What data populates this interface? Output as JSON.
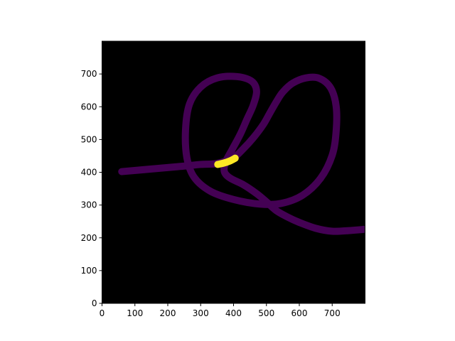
{
  "chart_data": {
    "type": "line",
    "title": "",
    "xlabel": "",
    "ylabel": "",
    "xlim": [
      0,
      800
    ],
    "ylim": [
      0,
      800
    ],
    "x_ticks": [
      0,
      100,
      200,
      300,
      400,
      500,
      600,
      700
    ],
    "y_ticks": [
      0,
      100,
      200,
      300,
      400,
      500,
      600,
      700
    ],
    "grid": false,
    "legend": "none",
    "background_color": "#000000",
    "colors": {
      "path": "#440154",
      "highlight": "#fde725",
      "frame": "#000000"
    },
    "series": [
      {
        "style": "thick-path",
        "points": [
          [
            60,
            402
          ],
          [
            150,
            410
          ],
          [
            230,
            417
          ],
          [
            300,
            424
          ],
          [
            350,
            427
          ],
          [
            400,
            445
          ],
          [
            430,
            472
          ],
          [
            460,
            505
          ],
          [
            490,
            545
          ],
          [
            510,
            580
          ],
          [
            530,
            615
          ],
          [
            550,
            645
          ],
          [
            580,
            672
          ],
          [
            620,
            688
          ],
          [
            660,
            687
          ],
          [
            695,
            658
          ],
          [
            712,
            602
          ],
          [
            712,
            525
          ],
          [
            700,
            452
          ],
          [
            665,
            382
          ],
          [
            610,
            330
          ],
          [
            545,
            305
          ],
          [
            480,
            303
          ],
          [
            400,
            317
          ],
          [
            330,
            342
          ],
          [
            280,
            385
          ],
          [
            258,
            445
          ],
          [
            254,
            530
          ],
          [
            266,
            608
          ],
          [
            300,
            660
          ],
          [
            350,
            688
          ],
          [
            410,
            692
          ],
          [
            455,
            678
          ],
          [
            470,
            648
          ],
          [
            460,
            605
          ],
          [
            440,
            560
          ],
          [
            420,
            515
          ],
          [
            396,
            470
          ],
          [
            376,
            432
          ],
          [
            372,
            402
          ],
          [
            390,
            382
          ],
          [
            430,
            362
          ],
          [
            470,
            335
          ],
          [
            500,
            310
          ],
          [
            530,
            283
          ],
          [
            565,
            263
          ],
          [
            600,
            247
          ],
          [
            650,
            229
          ],
          [
            700,
            220
          ],
          [
            750,
            222
          ],
          [
            800,
            226
          ]
        ]
      },
      {
        "style": "highlight",
        "points": [
          [
            352,
            424
          ],
          [
            370,
            428
          ],
          [
            390,
            435
          ],
          [
            405,
            443
          ]
        ]
      }
    ]
  }
}
